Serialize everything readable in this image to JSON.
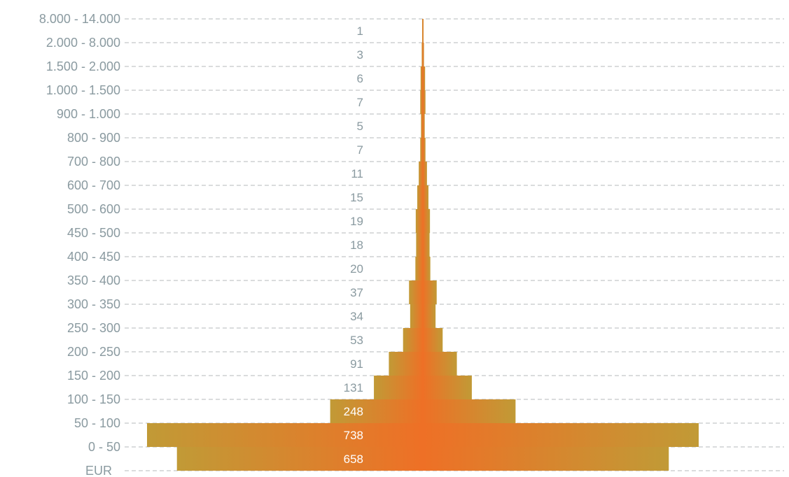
{
  "chart_data": {
    "type": "bar",
    "orientation": "horizontal-centered",
    "categories": [
      "8.000 - 14.000",
      "2.000 - 8.000",
      "1.500 - 2.000",
      "1.000 - 1.500",
      "900 - 1.000",
      "800 - 900",
      "700 - 800",
      "600 - 700",
      "500 - 600",
      "450 - 500",
      "400 - 450",
      "350 - 400",
      "300 - 350",
      "250 - 300",
      "200 - 250",
      "150 - 200",
      "100 - 150",
      "50 - 100",
      "0 - 50"
    ],
    "values": [
      1,
      3,
      6,
      7,
      5,
      7,
      11,
      15,
      19,
      18,
      20,
      37,
      34,
      53,
      91,
      131,
      248,
      738,
      658
    ],
    "axis_unit_label": "EUR",
    "grid": true,
    "legend": "none",
    "colors": {
      "bar_outer": "#c19a36",
      "bar_center": "#ee7026",
      "label_dark": "#8a9aa0",
      "label_light": "#ffffff",
      "gridline": "#b4b9bb"
    }
  }
}
